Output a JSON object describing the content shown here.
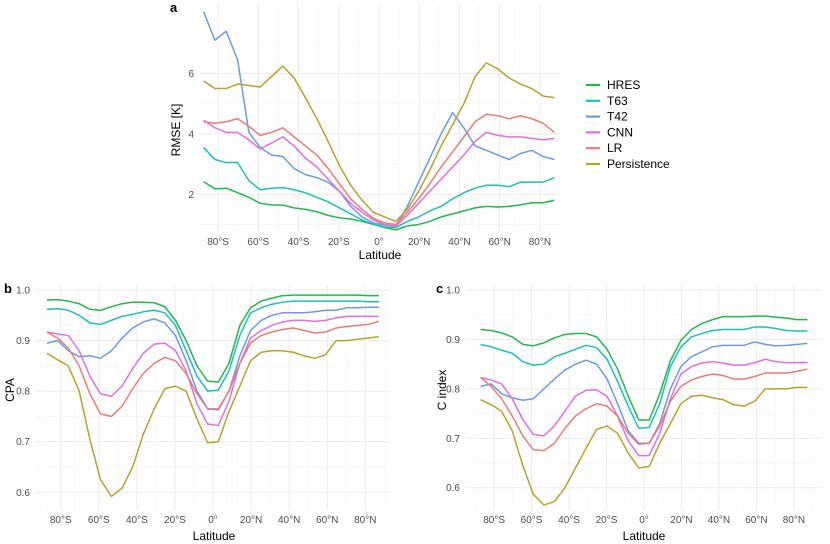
{
  "colors": {
    "HRES": "#20b94a",
    "T63": "#17c2b8",
    "T42": "#6a9be8",
    "CNN": "#e46ee0",
    "LR": "#ee7a76",
    "Persistence": "#b8a22a"
  },
  "legend": {
    "position": "right",
    "entries": [
      "HRES",
      "T63",
      "T42",
      "CNN",
      "LR",
      "Persistence"
    ]
  },
  "chart_data": [
    {
      "id": "a",
      "panel_letter": "a",
      "type": "line",
      "xlabel": "Latitude",
      "ylabel": "RMSE [K]",
      "xlim": [
        -89,
        90
      ],
      "ylim": [
        0.75,
        8.3
      ],
      "grid": true,
      "x_ticks": [
        {
          "value": -80,
          "label": "80°S"
        },
        {
          "value": -60,
          "label": "60°S"
        },
        {
          "value": -40,
          "label": "40°S"
        },
        {
          "value": -20,
          "label": "20°S"
        },
        {
          "value": 0,
          "label": "0°"
        },
        {
          "value": 20,
          "label": "20°N"
        },
        {
          "value": 40,
          "label": "40°N"
        },
        {
          "value": 60,
          "label": "60°N"
        },
        {
          "value": 80,
          "label": "80°N"
        }
      ],
      "y_ticks": [
        {
          "value": 2,
          "label": "2"
        },
        {
          "value": 4,
          "label": "4"
        },
        {
          "value": 6,
          "label": "6"
        }
      ],
      "x": [
        -87.2,
        -81.6,
        -76.0,
        -70.3,
        -64.7,
        -59.1,
        -53.4,
        -47.8,
        -42.2,
        -36.6,
        -30.9,
        -25.3,
        -19.7,
        -14.1,
        -8.4,
        -2.8,
        2.8,
        8.4,
        14.1,
        19.7,
        25.3,
        30.9,
        36.6,
        42.2,
        47.8,
        53.4,
        59.1,
        64.7,
        70.3,
        76.0,
        81.6,
        87.2
      ],
      "series": [
        {
          "name": "HRES",
          "values": [
            2.42,
            2.18,
            2.2,
            2.05,
            1.9,
            1.7,
            1.65,
            1.64,
            1.55,
            1.5,
            1.42,
            1.3,
            1.22,
            1.18,
            1.1,
            1.0,
            0.9,
            0.82,
            0.95,
            1.0,
            1.1,
            1.25,
            1.35,
            1.45,
            1.55,
            1.6,
            1.58,
            1.6,
            1.65,
            1.72,
            1.72,
            1.8
          ]
        },
        {
          "name": "T63",
          "values": [
            3.55,
            3.15,
            3.05,
            3.05,
            2.45,
            2.15,
            2.2,
            2.22,
            2.15,
            2.05,
            1.9,
            1.75,
            1.55,
            1.35,
            1.15,
            1.0,
            0.92,
            0.9,
            1.1,
            1.25,
            1.45,
            1.6,
            1.85,
            2.05,
            2.2,
            2.3,
            2.3,
            2.25,
            2.4,
            2.4,
            2.4,
            2.55
          ]
        },
        {
          "name": "T42",
          "values": [
            8.05,
            7.1,
            7.4,
            6.45,
            4.05,
            3.55,
            3.3,
            3.25,
            2.85,
            2.65,
            2.55,
            2.4,
            2.1,
            1.6,
            1.25,
            1.05,
            0.98,
            0.95,
            1.6,
            2.4,
            3.2,
            4.0,
            4.7,
            4.2,
            3.6,
            3.45,
            3.3,
            3.15,
            3.35,
            3.45,
            3.25,
            3.15
          ]
        },
        {
          "name": "CNN",
          "values": [
            4.45,
            4.2,
            4.05,
            4.05,
            3.8,
            3.5,
            3.7,
            3.9,
            3.6,
            3.2,
            2.9,
            2.5,
            2.1,
            1.7,
            1.4,
            1.15,
            1.0,
            0.95,
            1.3,
            1.7,
            2.1,
            2.5,
            2.9,
            3.3,
            3.75,
            4.05,
            3.95,
            3.9,
            3.9,
            3.85,
            3.8,
            3.85
          ]
        },
        {
          "name": "LR",
          "values": [
            4.4,
            4.35,
            4.4,
            4.5,
            4.25,
            3.95,
            4.05,
            4.2,
            3.9,
            3.6,
            3.3,
            2.85,
            2.35,
            1.85,
            1.5,
            1.2,
            1.05,
            1.0,
            1.4,
            1.85,
            2.35,
            2.9,
            3.4,
            3.9,
            4.4,
            4.65,
            4.6,
            4.5,
            4.6,
            4.5,
            4.35,
            4.05
          ]
        },
        {
          "name": "Persistence",
          "values": [
            5.75,
            5.5,
            5.5,
            5.65,
            5.6,
            5.55,
            5.9,
            6.25,
            5.85,
            5.2,
            4.5,
            3.75,
            2.95,
            2.3,
            1.8,
            1.4,
            1.25,
            1.1,
            1.5,
            2.1,
            2.8,
            3.6,
            4.3,
            5.0,
            5.9,
            6.35,
            6.15,
            5.85,
            5.65,
            5.5,
            5.25,
            5.2
          ]
        }
      ]
    },
    {
      "id": "b",
      "panel_letter": "b",
      "type": "line",
      "xlabel": "Latitude",
      "ylabel": "CPA",
      "xlim": [
        -93,
        93
      ],
      "ylim": [
        0.565,
        1.01
      ],
      "grid": true,
      "x_ticks": [
        {
          "value": -80,
          "label": "80°S"
        },
        {
          "value": -60,
          "label": "60°S"
        },
        {
          "value": -40,
          "label": "40°S"
        },
        {
          "value": -20,
          "label": "20°S"
        },
        {
          "value": 0,
          "label": "0°"
        },
        {
          "value": 20,
          "label": "20°N"
        },
        {
          "value": 40,
          "label": "40°N"
        },
        {
          "value": 60,
          "label": "60°N"
        },
        {
          "value": 80,
          "label": "80°N"
        }
      ],
      "y_ticks": [
        {
          "value": 0.6,
          "label": "0.6"
        },
        {
          "value": 0.7,
          "label": "0.7"
        },
        {
          "value": 0.8,
          "label": "0.8"
        },
        {
          "value": 0.9,
          "label": "0.9"
        },
        {
          "value": 1.0,
          "label": "1.0"
        }
      ],
      "x": [
        -87.2,
        -81.6,
        -76.0,
        -70.3,
        -64.7,
        -59.1,
        -53.4,
        -47.8,
        -42.2,
        -36.6,
        -30.9,
        -25.3,
        -19.7,
        -14.1,
        -8.4,
        -2.8,
        2.8,
        8.4,
        14.1,
        19.7,
        25.3,
        30.9,
        36.6,
        42.2,
        47.8,
        53.4,
        59.1,
        64.7,
        70.3,
        76.0,
        81.6,
        87.2
      ],
      "series": [
        {
          "name": "HRES",
          "values": [
            0.98,
            0.981,
            0.978,
            0.973,
            0.962,
            0.96,
            0.967,
            0.973,
            0.976,
            0.976,
            0.975,
            0.967,
            0.94,
            0.9,
            0.85,
            0.82,
            0.818,
            0.855,
            0.93,
            0.965,
            0.978,
            0.984,
            0.989,
            0.99,
            0.99,
            0.99,
            0.99,
            0.99,
            0.99,
            0.99,
            0.989,
            0.989
          ]
        },
        {
          "name": "T63",
          "values": [
            0.962,
            0.963,
            0.96,
            0.95,
            0.935,
            0.932,
            0.94,
            0.948,
            0.952,
            0.957,
            0.96,
            0.955,
            0.93,
            0.88,
            0.83,
            0.8,
            0.802,
            0.84,
            0.91,
            0.955,
            0.965,
            0.972,
            0.976,
            0.978,
            0.978,
            0.978,
            0.978,
            0.978,
            0.978,
            0.978,
            0.977,
            0.977
          ]
        },
        {
          "name": "T42",
          "values": [
            0.895,
            0.9,
            0.88,
            0.868,
            0.87,
            0.865,
            0.88,
            0.905,
            0.925,
            0.937,
            0.943,
            0.935,
            0.91,
            0.86,
            0.8,
            0.765,
            0.763,
            0.8,
            0.87,
            0.92,
            0.94,
            0.95,
            0.955,
            0.955,
            0.955,
            0.957,
            0.96,
            0.96,
            0.965,
            0.965,
            0.966,
            0.966
          ]
        },
        {
          "name": "CNN",
          "values": [
            0.917,
            0.913,
            0.91,
            0.88,
            0.83,
            0.795,
            0.79,
            0.81,
            0.845,
            0.875,
            0.893,
            0.895,
            0.88,
            0.84,
            0.775,
            0.735,
            0.732,
            0.78,
            0.855,
            0.905,
            0.92,
            0.93,
            0.937,
            0.94,
            0.94,
            0.938,
            0.94,
            0.945,
            0.948,
            0.948,
            0.948,
            0.948
          ]
        },
        {
          "name": "LR",
          "values": [
            0.917,
            0.905,
            0.885,
            0.85,
            0.795,
            0.755,
            0.75,
            0.77,
            0.805,
            0.835,
            0.855,
            0.867,
            0.86,
            0.835,
            0.795,
            0.765,
            0.765,
            0.8,
            0.855,
            0.895,
            0.91,
            0.917,
            0.922,
            0.925,
            0.92,
            0.915,
            0.917,
            0.925,
            0.928,
            0.93,
            0.932,
            0.938
          ]
        },
        {
          "name": "Persistence",
          "values": [
            0.875,
            0.862,
            0.85,
            0.8,
            0.705,
            0.625,
            0.592,
            0.608,
            0.65,
            0.715,
            0.765,
            0.805,
            0.81,
            0.8,
            0.745,
            0.698,
            0.7,
            0.76,
            0.81,
            0.86,
            0.877,
            0.88,
            0.88,
            0.877,
            0.87,
            0.865,
            0.872,
            0.9,
            0.9,
            0.903,
            0.905,
            0.908
          ]
        }
      ]
    },
    {
      "id": "c",
      "panel_letter": "c",
      "type": "line",
      "xlabel": "Latitude",
      "ylabel": "C index",
      "xlim": [
        -95,
        95
      ],
      "ylim": [
        0.555,
        1.01
      ],
      "grid": true,
      "x_ticks": [
        {
          "value": -80,
          "label": "80°S"
        },
        {
          "value": -60,
          "label": "60°S"
        },
        {
          "value": -40,
          "label": "40°S"
        },
        {
          "value": -20,
          "label": "20°S"
        },
        {
          "value": 0,
          "label": "0°"
        },
        {
          "value": 20,
          "label": "20°N"
        },
        {
          "value": 40,
          "label": "40°N"
        },
        {
          "value": 60,
          "label": "60°N"
        },
        {
          "value": 80,
          "label": "80°N"
        }
      ],
      "y_ticks": [
        {
          "value": 0.6,
          "label": "0.6"
        },
        {
          "value": 0.7,
          "label": "0.7"
        },
        {
          "value": 0.8,
          "label": "0.8"
        },
        {
          "value": 0.9,
          "label": "0.9"
        },
        {
          "value": 1.0,
          "label": "1.0"
        }
      ],
      "x": [
        -87.2,
        -81.6,
        -76.0,
        -70.3,
        -64.7,
        -59.1,
        -53.4,
        -47.8,
        -42.2,
        -36.6,
        -30.9,
        -25.3,
        -19.7,
        -14.1,
        -8.4,
        -2.8,
        2.8,
        8.4,
        14.1,
        19.7,
        25.3,
        30.9,
        36.6,
        42.2,
        47.8,
        53.4,
        59.1,
        64.7,
        70.3,
        76.0,
        81.6,
        87.2
      ],
      "series": [
        {
          "name": "HRES",
          "values": [
            0.92,
            0.918,
            0.913,
            0.905,
            0.89,
            0.887,
            0.893,
            0.903,
            0.91,
            0.912,
            0.912,
            0.905,
            0.88,
            0.84,
            0.785,
            0.737,
            0.737,
            0.79,
            0.857,
            0.898,
            0.92,
            0.932,
            0.94,
            0.946,
            0.946,
            0.946,
            0.947,
            0.947,
            0.945,
            0.943,
            0.94,
            0.94
          ]
        },
        {
          "name": "T63",
          "values": [
            0.89,
            0.885,
            0.878,
            0.872,
            0.855,
            0.848,
            0.85,
            0.865,
            0.872,
            0.88,
            0.888,
            0.883,
            0.86,
            0.815,
            0.765,
            0.72,
            0.722,
            0.77,
            0.845,
            0.885,
            0.905,
            0.912,
            0.918,
            0.92,
            0.92,
            0.92,
            0.925,
            0.925,
            0.922,
            0.918,
            0.917,
            0.917
          ]
        },
        {
          "name": "T42",
          "values": [
            0.805,
            0.81,
            0.79,
            0.782,
            0.777,
            0.78,
            0.8,
            0.82,
            0.838,
            0.85,
            0.858,
            0.85,
            0.82,
            0.77,
            0.715,
            0.69,
            0.69,
            0.73,
            0.8,
            0.845,
            0.865,
            0.875,
            0.885,
            0.888,
            0.888,
            0.888,
            0.895,
            0.89,
            0.887,
            0.888,
            0.89,
            0.892
          ]
        },
        {
          "name": "CNN",
          "values": [
            0.823,
            0.818,
            0.81,
            0.78,
            0.738,
            0.708,
            0.705,
            0.725,
            0.755,
            0.785,
            0.797,
            0.798,
            0.785,
            0.745,
            0.695,
            0.665,
            0.665,
            0.71,
            0.78,
            0.83,
            0.845,
            0.852,
            0.855,
            0.852,
            0.848,
            0.848,
            0.853,
            0.86,
            0.855,
            0.853,
            0.853,
            0.853
          ]
        },
        {
          "name": "LR",
          "values": [
            0.823,
            0.805,
            0.78,
            0.745,
            0.705,
            0.677,
            0.675,
            0.69,
            0.72,
            0.745,
            0.76,
            0.77,
            0.765,
            0.745,
            0.71,
            0.688,
            0.69,
            0.725,
            0.775,
            0.805,
            0.818,
            0.825,
            0.83,
            0.827,
            0.82,
            0.82,
            0.825,
            0.832,
            0.832,
            0.832,
            0.835,
            0.84
          ]
        },
        {
          "name": "Persistence",
          "values": [
            0.778,
            0.768,
            0.755,
            0.715,
            0.645,
            0.587,
            0.565,
            0.572,
            0.6,
            0.64,
            0.68,
            0.718,
            0.725,
            0.71,
            0.67,
            0.64,
            0.643,
            0.69,
            0.73,
            0.77,
            0.785,
            0.787,
            0.782,
            0.778,
            0.768,
            0.765,
            0.775,
            0.8,
            0.8,
            0.8,
            0.803,
            0.803
          ]
        }
      ]
    }
  ]
}
